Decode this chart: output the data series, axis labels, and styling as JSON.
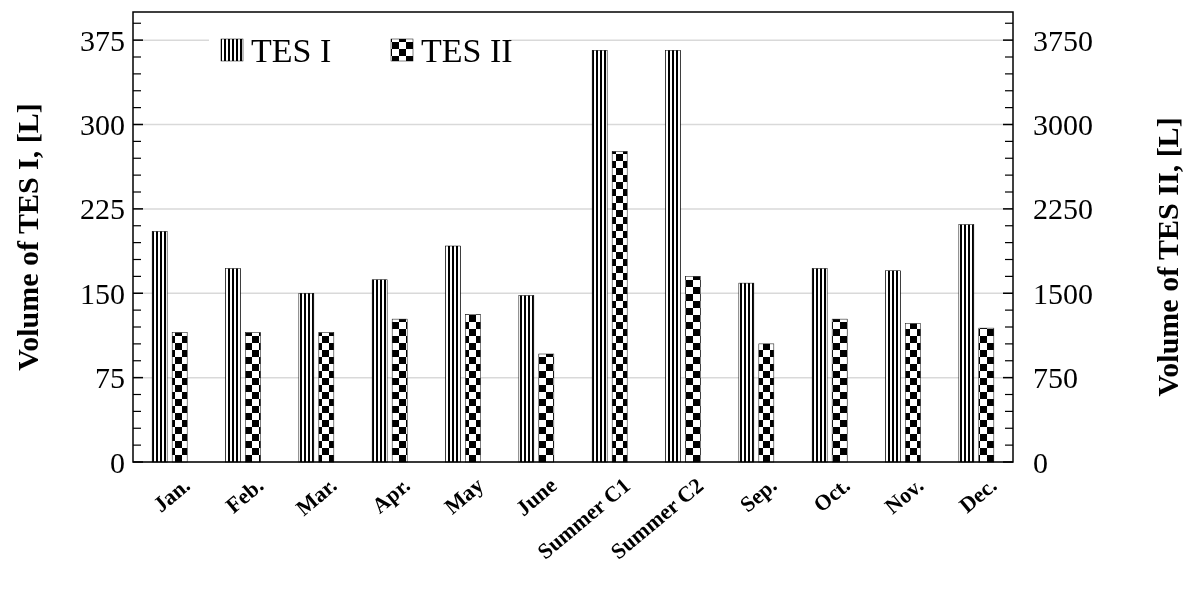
{
  "chart_data": {
    "type": "bar",
    "ylabel": "Volume of TES I, [L]",
    "y2label": "Volume of TES II, [L]",
    "categories": [
      "Jan.",
      "Feb.",
      "Mar.",
      "Apr.",
      "May",
      "June",
      "Summer C1",
      "Summer C2",
      "Sep.",
      "Oct.",
      "Nov.",
      "Dec."
    ],
    "series": [
      {
        "name": "TES I",
        "color": "#000000",
        "values": [
          205,
          172,
          150,
          162,
          192,
          148,
          366,
          366,
          159,
          172,
          170,
          211
        ]
      },
      {
        "name": "TES II",
        "color": "#000000",
        "axis": "y2",
        "values": [
          1150,
          1150,
          1150,
          1270,
          1310,
          960,
          2760,
          1650,
          1050,
          1270,
          1230,
          1190
        ]
      }
    ],
    "ylim": [
      0,
      400
    ],
    "yticks": [
      0,
      75,
      150,
      225,
      300,
      375
    ],
    "y2lim": [
      0,
      4000
    ],
    "y2ticks": [
      0,
      750,
      1500,
      2250,
      3000,
      3750
    ],
    "grid": "y",
    "legend": "top left"
  }
}
